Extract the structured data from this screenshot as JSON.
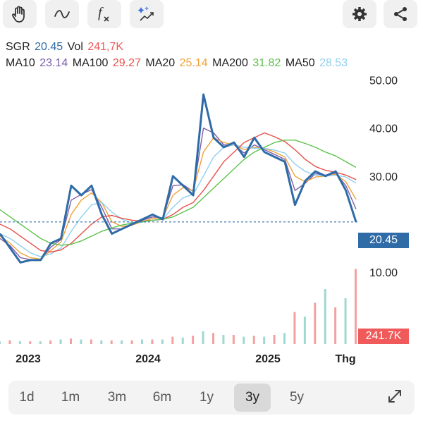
{
  "toolbar": {
    "left_tools": [
      "hand-icon",
      "curve-icon",
      "function-icon",
      "magic-trend-icon"
    ],
    "right_tools": [
      "gear-icon",
      "share-icon"
    ]
  },
  "quote": {
    "symbol": "SGR",
    "price": "20.45",
    "vol_label": "Vol",
    "vol_value": "241,7K"
  },
  "indicators": [
    {
      "label": "MA10",
      "value": "23.14",
      "color": "#7b5ea7"
    },
    {
      "label": "MA100",
      "value": "29.27",
      "color": "#e8504a"
    },
    {
      "label": "MA20",
      "value": "25.14",
      "color": "#f0a23a"
    },
    {
      "label": "MA200",
      "value": "31.82",
      "color": "#5cc24a"
    },
    {
      "label": "MA50",
      "value": "28.53",
      "color": "#8fd0f0"
    }
  ],
  "price_tag": "20.45",
  "volume_tag": "241.7K",
  "chart_data": {
    "type": "line",
    "y_ticks": [
      "50.00",
      "40.00",
      "30.00",
      "10.00"
    ],
    "x_ticks": [
      "2023",
      "2024",
      "2025",
      "Thg"
    ],
    "ylim": [
      5,
      52
    ],
    "x": [
      "2022-09",
      "2022-10",
      "2022-11",
      "2022-12",
      "2023-01",
      "2023-02",
      "2023-03",
      "2023-04",
      "2023-05",
      "2023-06",
      "2023-07",
      "2023-08",
      "2023-09",
      "2023-10",
      "2023-11",
      "2023-12",
      "2024-01",
      "2024-02",
      "2024-03",
      "2024-04",
      "2024-05",
      "2024-06",
      "2024-07",
      "2024-08",
      "2024-09",
      "2024-10",
      "2024-11",
      "2024-12",
      "2025-01",
      "2025-02",
      "2025-03",
      "2025-04",
      "2025-05",
      "2025-06",
      "2025-07",
      "2025-08"
    ],
    "series": [
      {
        "name": "SGR",
        "color": "#2f6ba7",
        "values": [
          18,
          15,
          12,
          12.5,
          12.5,
          16,
          17,
          28,
          26,
          28,
          22,
          18,
          19,
          20,
          21,
          22,
          21,
          30,
          28,
          26,
          47,
          38,
          36,
          37,
          34,
          38,
          35,
          34,
          33,
          24,
          29,
          31,
          30,
          31,
          27,
          20.45
        ]
      },
      {
        "name": "MA10",
        "color": "#7b5ea7",
        "values": [
          17,
          15.5,
          13,
          12.6,
          12.6,
          15.2,
          16.8,
          25,
          26.2,
          27.2,
          23.5,
          19,
          19,
          20,
          20.8,
          21.5,
          21.3,
          28,
          28.2,
          26.8,
          40,
          39,
          36.5,
          36.5,
          34.8,
          36.5,
          35.5,
          34.5,
          33.5,
          27,
          28.5,
          30.5,
          30.2,
          30.6,
          28,
          23.14
        ]
      },
      {
        "name": "MA20",
        "color": "#f0a23a",
        "values": [
          17.5,
          16,
          14,
          13,
          12.7,
          14.5,
          16.3,
          22,
          25,
          26.5,
          24.5,
          20.5,
          19.5,
          19.8,
          20.5,
          21.2,
          21.3,
          26,
          27.6,
          27,
          35,
          38,
          37,
          36.5,
          35.5,
          36,
          35.8,
          35,
          34,
          30,
          28.8,
          29.8,
          30,
          30.4,
          28.8,
          25.14
        ]
      },
      {
        "name": "MA50",
        "color": "#8fd0f0",
        "values": [
          18,
          17,
          15.5,
          14,
          13.2,
          13.8,
          15,
          18.5,
          21.5,
          24,
          24.5,
          22.5,
          21,
          20.2,
          20.4,
          20.8,
          21,
          23.5,
          25.5,
          26.2,
          30,
          34,
          36,
          36.5,
          36,
          35.8,
          35.8,
          35.4,
          34.8,
          32.5,
          31,
          30.2,
          30,
          30.2,
          29.8,
          28.53
        ]
      },
      {
        "name": "MA100",
        "color": "#e8504a",
        "values": [
          20,
          19,
          17.5,
          16,
          14.5,
          14.2,
          14.6,
          16,
          18,
          20,
          21.5,
          21.8,
          21.2,
          20.8,
          20.6,
          20.8,
          21,
          22,
          23.5,
          24.5,
          27,
          30,
          33,
          35,
          37,
          38,
          39,
          38.2,
          37.2,
          35.5,
          33.5,
          32,
          31.2,
          30.8,
          30.2,
          29.27
        ]
      },
      {
        "name": "MA200",
        "color": "#5cc24a",
        "values": [
          23,
          21.5,
          20,
          18.5,
          17,
          16,
          15.6,
          15.8,
          16.5,
          17.5,
          18.5,
          19.2,
          19.8,
          20.2,
          20.5,
          20.8,
          21,
          21.5,
          22.5,
          23.5,
          25.5,
          27.5,
          29.5,
          31.5,
          33.5,
          35,
          36,
          37,
          37.5,
          37.5,
          36.8,
          36,
          35,
          34.2,
          33,
          31.82
        ]
      }
    ],
    "volume": [
      0.03,
      0.04,
      0.03,
      0.03,
      0.03,
      0.04,
      0.05,
      0.06,
      0.05,
      0.05,
      0.04,
      0.04,
      0.04,
      0.04,
      0.05,
      0.05,
      0.05,
      0.08,
      0.07,
      0.09,
      0.14,
      0.12,
      0.1,
      0.1,
      0.08,
      0.09,
      0.08,
      0.1,
      0.12,
      0.35,
      0.3,
      0.45,
      0.6,
      0.4,
      0.5,
      0.82
    ],
    "reference_line": 20.45,
    "grid": false
  },
  "range_buttons": [
    "1d",
    "1m",
    "3m",
    "6m",
    "1y",
    "3y",
    "5y"
  ],
  "active_range": "3y"
}
